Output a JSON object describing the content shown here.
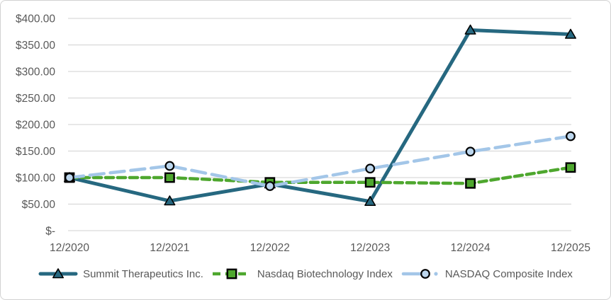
{
  "chart_data": {
    "type": "line",
    "title": "",
    "xlabel": "",
    "ylabel": "",
    "categories": [
      "12/2020",
      "12/2021",
      "12/2022",
      "12/2023",
      "12/2024",
      "12/2025"
    ],
    "series": [
      {
        "name": "Summit Therapeutics Inc.",
        "values": [
          100,
          56,
          88,
          55,
          378,
          370
        ],
        "color": "#266880",
        "dash": "solid",
        "marker": "triangle",
        "marker_fill": "#266880"
      },
      {
        "name": "Nasdaq Biotechnology Index",
        "values": [
          100,
          100,
          91,
          91,
          89,
          119
        ],
        "color": "#4EA72E",
        "dash": "dashed",
        "marker": "square",
        "marker_fill": "#4EA72E"
      },
      {
        "name": "NASDAQ Composite Index",
        "values": [
          100,
          122,
          84,
          117,
          149,
          178
        ],
        "color": "#A3C6E8",
        "dash": "long-dash",
        "marker": "circle",
        "marker_fill": "#BDD7EE"
      }
    ],
    "y_ticks": [
      {
        "value": 400,
        "label": "$400.00"
      },
      {
        "value": 350,
        "label": "$350.00"
      },
      {
        "value": 300,
        "label": "$300.00"
      },
      {
        "value": 250,
        "label": "$250.00"
      },
      {
        "value": 200,
        "label": "$200.00"
      },
      {
        "value": 150,
        "label": "$150.00"
      },
      {
        "value": 100,
        "label": "$100.00"
      },
      {
        "value": 50,
        "label": "$50.00"
      },
      {
        "value": 0,
        "label": "$-"
      }
    ],
    "ylim": [
      0,
      400
    ],
    "grid": true,
    "grid_color": "#D9D9D9",
    "text_color": "#595959",
    "marker_outline": "#000000",
    "legend_position": "bottom"
  }
}
